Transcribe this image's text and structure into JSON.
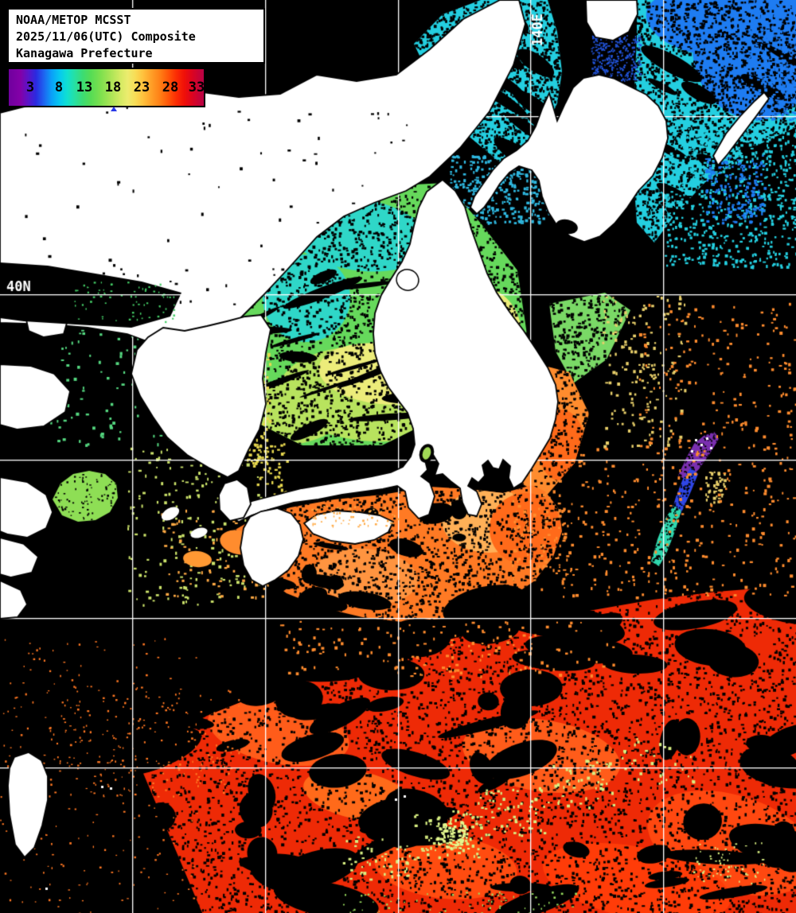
{
  "header": {
    "product": "NOAA/METOP MCSST",
    "date_line": "2025/11/06(UTC) Composite",
    "region_line": "Kanagawa Prefecture"
  },
  "colorbar": {
    "tick_labels": [
      "3",
      "8",
      "13",
      "18",
      "23",
      "28",
      "33"
    ],
    "marker_color": "#2838e8"
  },
  "map": {
    "lat_label": "40N",
    "lon_label": "140E",
    "grid_v": [
      166,
      333,
      500,
      666,
      833
    ],
    "grid_h": [
      146,
      370,
      578,
      777,
      965
    ]
  },
  "palette": {
    "no_data": "#000000",
    "cloud_land": "#ffffff",
    "grid": "#ffffff",
    "cold_blue": "#1e7cf2",
    "deep_blue": "#2a3ae0",
    "cyan": "#24cfe0",
    "teal": "#3ecf92",
    "green": "#66d95c",
    "yellow_green": "#b8e35e",
    "yellow": "#ecec7a",
    "pale_orange": "#ffb057",
    "orange": "#ff8c2e",
    "deep_orange": "#ff6a1a",
    "red": "#ee2a06",
    "bright_red": "#ff4810",
    "purple": "#7a2fb0",
    "streak_blue": "#2f46e6",
    "streak_cyan": "#2fd7ae",
    "speck_yellow": "#d8ef82"
  }
}
